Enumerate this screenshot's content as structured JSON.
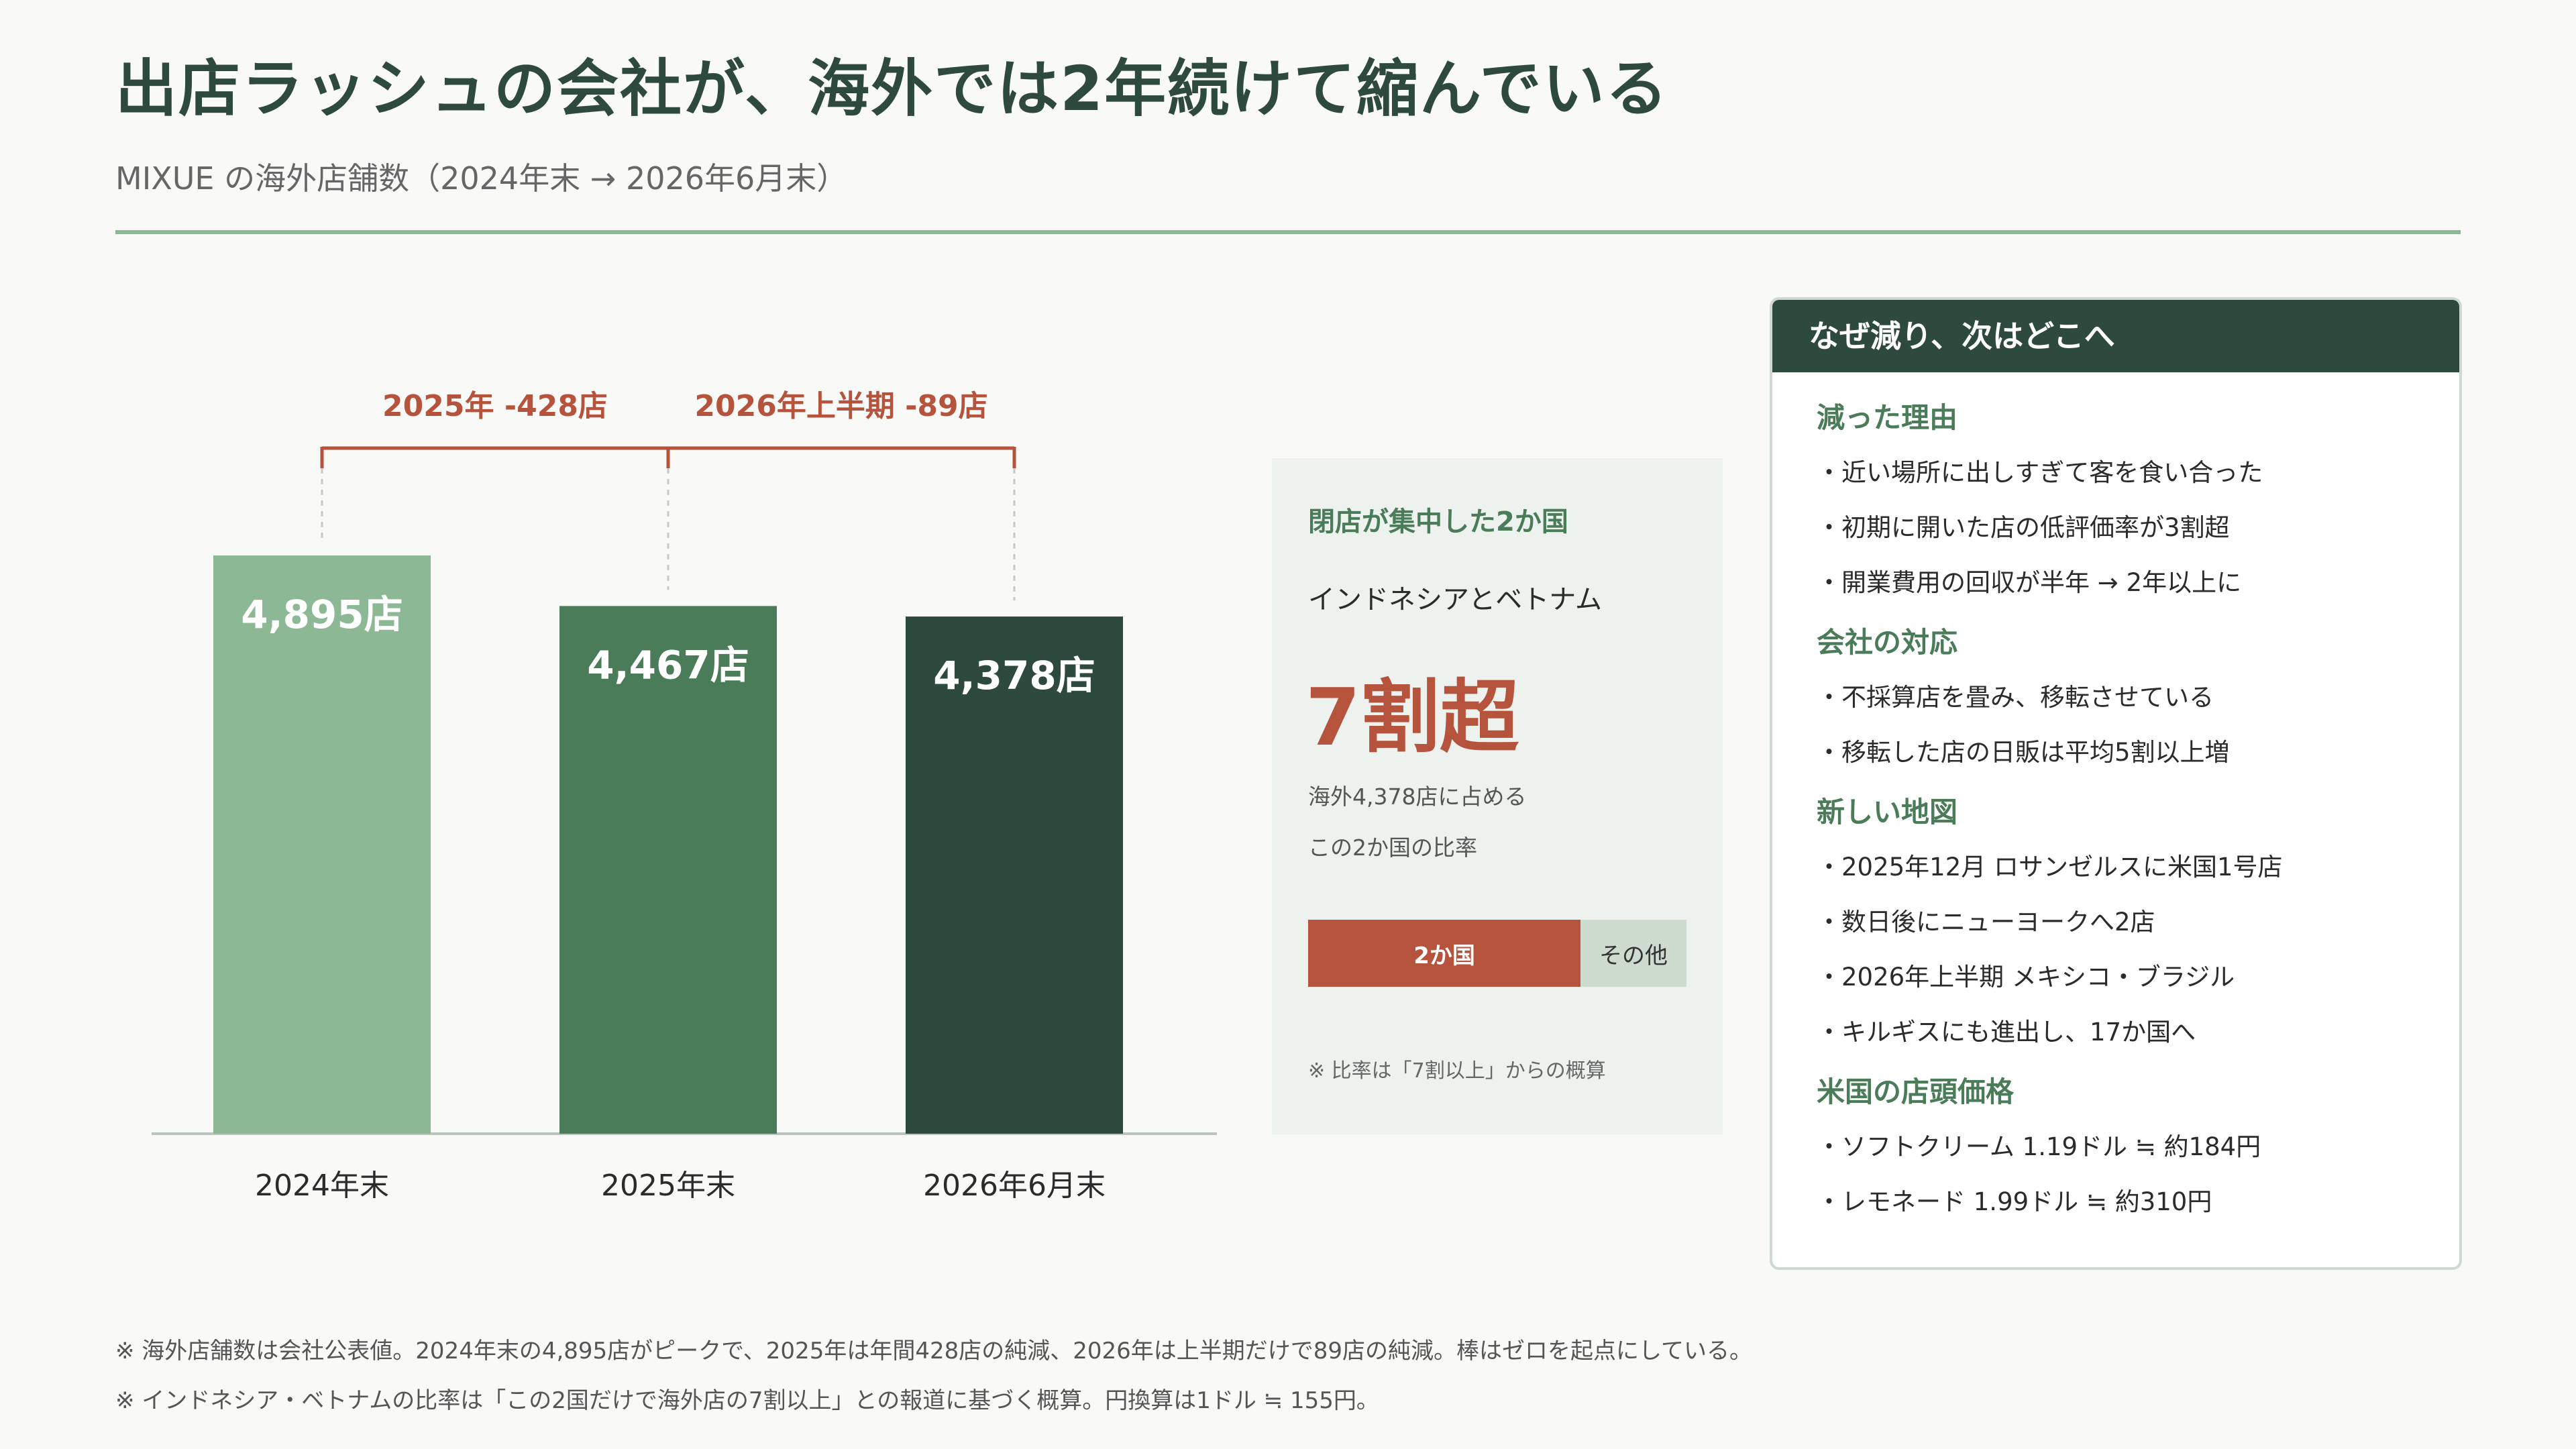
{
  "header": {
    "title": "出店ラッシュの会社が、海外では2年続けて縮んでいる",
    "subtitle": "MIXUE の海外店舗数（2024年末 → 2026年6月末）"
  },
  "colors": {
    "bar_2024": "#8db896",
    "bar_2025": "#4a7c59",
    "bar_2026": "#2e4a3e",
    "accent": "#b5533c",
    "heading_green": "#4a7c59",
    "dark_green": "#2e4a3e"
  },
  "chart_data": {
    "type": "bar",
    "categories": [
      "2024年末",
      "2025年末",
      "2026年6月末"
    ],
    "values": [
      4895,
      4467,
      4378
    ],
    "value_labels": [
      "4,895店",
      "4,467店",
      "4,378店"
    ],
    "ylim": [
      0,
      4895
    ],
    "grid": false,
    "annotations": [
      {
        "from": "2024年末",
        "to": "2025年末",
        "label": "2025年 -428店"
      },
      {
        "from": "2025年末",
        "to": "2026年6月末",
        "label": "2026年上半期 -89店"
      }
    ]
  },
  "concentration": {
    "heading": "閉店が集中した2か国",
    "countries": "インドネシアとベトナム",
    "big_value": "7割超",
    "note_line1": "海外4,378店に占める",
    "note_line2": "この2か国の比率",
    "share": 0.72,
    "bar_label_main": "2か国",
    "bar_label_other": "その他",
    "footnote": "※ 比率は「7割以上」からの概算"
  },
  "side": {
    "header": "なぜ減り、次はどこへ",
    "sections": [
      {
        "title": "減った理由",
        "items": [
          "・近い場所に出しすぎて客を食い合った",
          "・初期に開いた店の低評価率が3割超",
          "・開業費用の回収が半年 → 2年以上に"
        ]
      },
      {
        "title": "会社の対応",
        "items": [
          "・不採算店を畳み、移転させている",
          "・移転した店の日販は平均5割以上増"
        ]
      },
      {
        "title": "新しい地図",
        "items": [
          "・2025年12月 ロサンゼルスに米国1号店",
          "・数日後にニューヨークへ2店",
          "・2026年上半期 メキシコ・ブラジル",
          "・キルギスにも進出し、17か国へ"
        ]
      },
      {
        "title": "米国の店頭価格",
        "items": [
          "・ソフトクリーム 1.19ドル ≒ 約184円",
          "・レモネード 1.99ドル ≒ 約310円"
        ]
      }
    ]
  },
  "footnotes": [
    "※ 海外店舗数は会社公表値。2024年末の4,895店がピークで、2025年は年間428店の純減、2026年は上半期だけで89店の純減。棒はゼロを起点にしている。",
    "※ インドネシア・ベトナムの比率は「この2国だけで海外店の7割以上」との報道に基づく概算。円換算は1ドル ≒ 155円。"
  ]
}
